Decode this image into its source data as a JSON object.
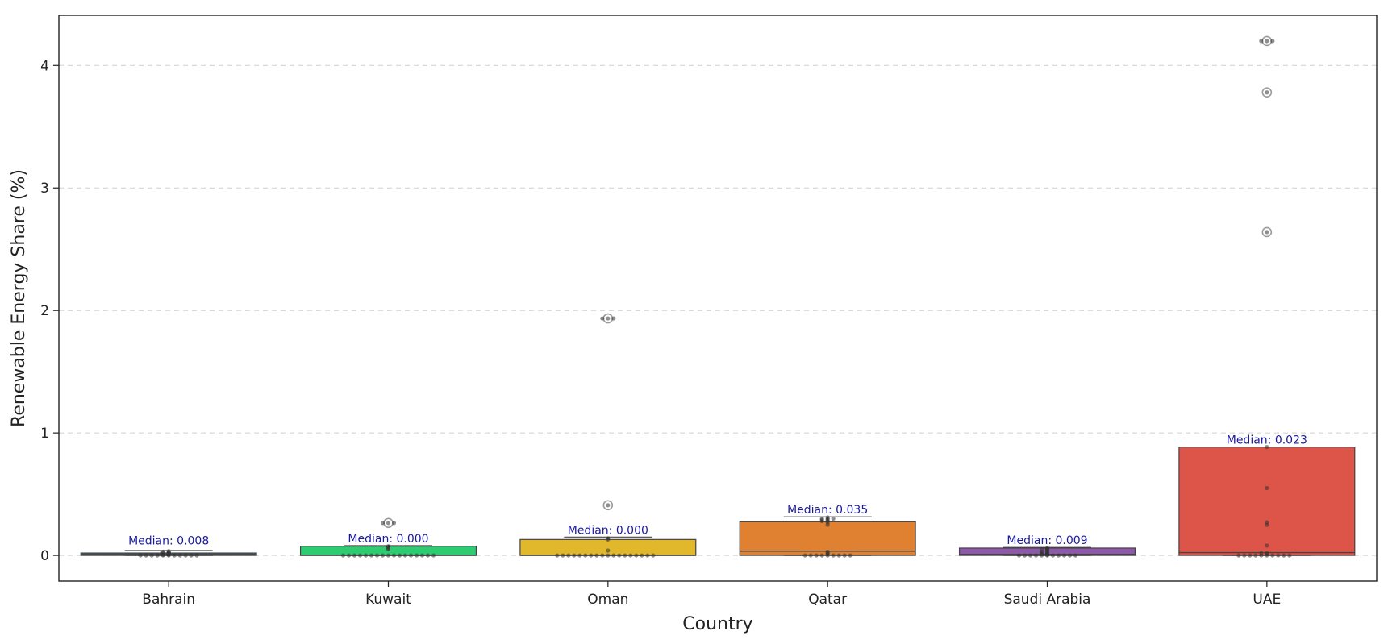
{
  "chart_data": {
    "type": "box",
    "title": "",
    "xlabel": "Country",
    "ylabel": "Renewable Energy Share (%)",
    "ylim": [
      -0.21,
      4.41
    ],
    "yticks": [
      0,
      1,
      2,
      3,
      4
    ],
    "grid": "y-dashed",
    "categories": [
      "Bahrain",
      "Kuwait",
      "Oman",
      "Qatar",
      "Saudi Arabia",
      "UAE"
    ],
    "colors": [
      "#3e5f72",
      "#2ecc71",
      "#e1b82b",
      "#df8130",
      "#8e58ac",
      "#dd5448"
    ],
    "boxes": [
      {
        "category": "Bahrain",
        "q1": 0.0,
        "median": 0.008,
        "q3": 0.02,
        "whisker_low": 0.0,
        "whisker_high": 0.04,
        "outliers": []
      },
      {
        "category": "Kuwait",
        "q1": 0.0,
        "median": 0.0,
        "q3": 0.075,
        "whisker_low": 0.0,
        "whisker_high": 0.08,
        "outliers": [
          0.265
        ]
      },
      {
        "category": "Oman",
        "q1": 0.0,
        "median": 0.0,
        "q3": 0.13,
        "whisker_low": 0.0,
        "whisker_high": 0.15,
        "outliers": [
          0.41,
          1.935
        ]
      },
      {
        "category": "Qatar",
        "q1": 0.0,
        "median": 0.035,
        "q3": 0.275,
        "whisker_low": 0.0,
        "whisker_high": 0.315,
        "outliers": []
      },
      {
        "category": "Saudi Arabia",
        "q1": 0.0,
        "median": 0.009,
        "q3": 0.06,
        "whisker_low": 0.0,
        "whisker_high": 0.065,
        "outliers": []
      },
      {
        "category": "UAE",
        "q1": 0.0,
        "median": 0.023,
        "q3": 0.885,
        "whisker_low": 0.0,
        "whisker_high": 0.885,
        "outliers": [
          2.64,
          3.78,
          4.2
        ]
      }
    ],
    "median_labels": [
      "Median: 0.008",
      "Median: 0.000",
      "Median: 0.000",
      "Median: 0.035",
      "Median: 0.009",
      "Median: 0.023"
    ],
    "points": [
      {
        "category": "Bahrain",
        "values": [
          0.0,
          0.0,
          0.0,
          0.0,
          0.0,
          0.0,
          0.0,
          0.0,
          0.0,
          0.0,
          0.005,
          0.008,
          0.01,
          0.012,
          0.015,
          0.02,
          0.022,
          0.025,
          0.03,
          0.035,
          0.03,
          0.02,
          0.01,
          0.005,
          0.0
        ]
      },
      {
        "category": "Kuwait",
        "values": [
          0.0,
          0.0,
          0.0,
          0.0,
          0.0,
          0.0,
          0.0,
          0.0,
          0.0,
          0.0,
          0.0,
          0.0,
          0.0,
          0.0,
          0.0,
          0.0,
          0.0,
          0.05,
          0.06,
          0.07,
          0.075,
          0.265,
          0.265,
          0.265
        ]
      },
      {
        "category": "Oman",
        "values": [
          0.0,
          0.0,
          0.0,
          0.0,
          0.0,
          0.0,
          0.0,
          0.0,
          0.0,
          0.0,
          0.0,
          0.0,
          0.0,
          0.0,
          0.0,
          0.0,
          0.0,
          0.0,
          0.04,
          0.13,
          0.14,
          0.41,
          1.935,
          1.935,
          1.935
        ]
      },
      {
        "category": "Qatar",
        "values": [
          0.0,
          0.0,
          0.0,
          0.0,
          0.0,
          0.0,
          0.0,
          0.0,
          0.0,
          0.01,
          0.02,
          0.03,
          0.25,
          0.27,
          0.28,
          0.29,
          0.3,
          0.3,
          0.31,
          0.3,
          0.29,
          0.28
        ]
      },
      {
        "category": "Saudi Arabia",
        "values": [
          0.0,
          0.0,
          0.0,
          0.0,
          0.0,
          0.0,
          0.0,
          0.0,
          0.0,
          0.0,
          0.0,
          0.005,
          0.01,
          0.015,
          0.02,
          0.03,
          0.04,
          0.05,
          0.055,
          0.06,
          0.05,
          0.03,
          0.02,
          0.01
        ]
      },
      {
        "category": "UAE",
        "values": [
          0.0,
          0.0,
          0.0,
          0.0,
          0.0,
          0.0,
          0.0,
          0.0,
          0.0,
          0.0,
          0.01,
          0.02,
          0.02,
          0.08,
          0.25,
          0.27,
          0.55,
          0.885,
          2.64,
          3.78,
          4.2,
          4.2,
          4.2
        ]
      }
    ]
  }
}
